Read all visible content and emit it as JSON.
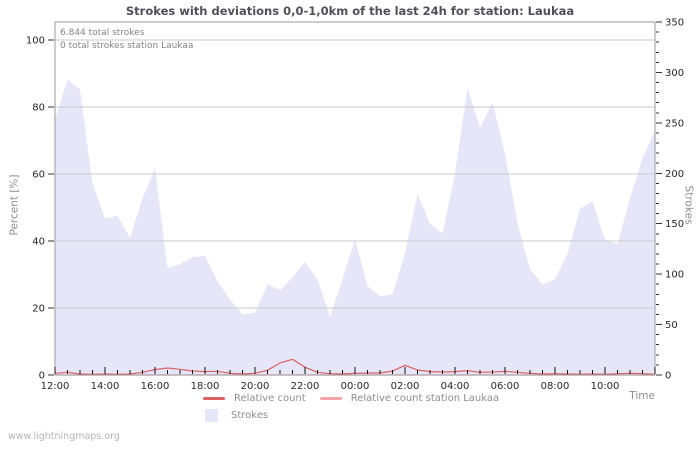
{
  "page": {
    "watermark": "www.lightningmaps.org"
  },
  "chart": {
    "title": "Strokes with deviations 0,0-1,0km of the last 24h for station: Laukaa",
    "annotations": [
      "6.844 total strokes",
      "0 total strokes station Laukaa"
    ]
  },
  "chart_data": {
    "type": "area+line",
    "title": "Strokes with deviations 0,0-1,0km of the last 24h for station: Laukaa",
    "x_start": "12:00",
    "x_step_hours": 0.5,
    "x_range_hours": 24,
    "x_axis": {
      "title": "Time",
      "minor_step_hours": 0.5,
      "major_step_hours": 2,
      "labels": [
        "12:00",
        "14:00",
        "16:00",
        "18:00",
        "20:00",
        "22:00",
        "00:00",
        "02:00",
        "04:00",
        "06:00",
        "08:00",
        "10:00"
      ]
    },
    "left_axis": {
      "label": "Percent  [%]",
      "ticks": [
        0,
        20,
        40,
        60,
        80,
        100
      ],
      "range": [
        0,
        100
      ]
    },
    "right_axis": {
      "label": "Strokes",
      "max": 350,
      "minor_step": 10,
      "major_step": 50,
      "range": [
        0,
        350
      ]
    },
    "grid": "horizontal-only",
    "legend_position": "bottom-center",
    "series": [
      {
        "name": "Strokes",
        "type": "area",
        "axis": "right",
        "color": "#e6e6f8",
        "values": [
          253,
          293,
          283,
          190,
          155,
          158,
          136,
          175,
          205,
          106,
          110,
          117,
          118,
          93,
          75,
          60,
          62,
          90,
          84,
          97,
          112,
          95,
          58,
          95,
          135,
          88,
          78,
          80,
          120,
          180,
          150,
          140,
          200,
          285,
          245,
          270,
          220,
          150,
          105,
          90,
          95,
          120,
          165,
          172,
          134,
          130,
          175,
          215,
          243
        ]
      },
      {
        "name": "Relative count",
        "type": "line",
        "axis": "left",
        "color": "#d96266",
        "values": [
          0.5,
          0.8,
          0.3,
          0.2,
          0.3,
          0.2,
          0.3,
          0.8,
          1.6,
          2.1,
          1.7,
          1.2,
          1.0,
          1.1,
          0.5,
          0.3,
          0.5,
          1.4,
          3.6,
          4.7,
          2.3,
          0.8,
          0.4,
          0.3,
          0.5,
          0.6,
          0.6,
          1.2,
          2.9,
          1.5,
          1.0,
          0.9,
          1.0,
          1.3,
          0.8,
          0.9,
          1.1,
          0.8,
          0.5,
          0.3,
          0.4,
          0.3,
          0.2,
          0.3,
          0.2,
          0.4,
          0.5,
          0.4,
          0.2
        ]
      },
      {
        "name": "Relative count station Laukaa",
        "type": "line",
        "axis": "left",
        "color": "#f4a4a6",
        "constant": 0
      }
    ]
  }
}
